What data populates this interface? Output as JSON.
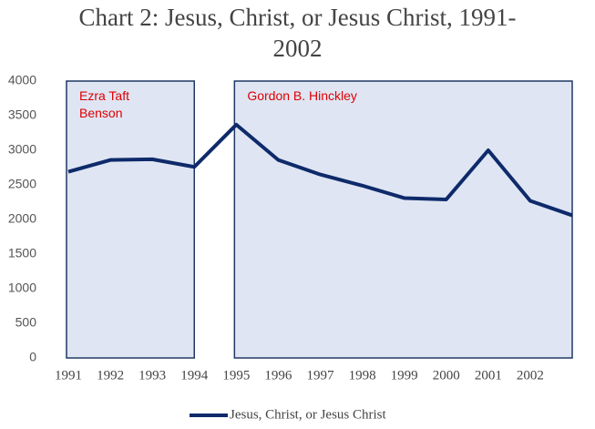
{
  "chart_data": {
    "type": "line",
    "title": "Chart 2: Jesus, Christ, or Jesus Christ, 1991-2002",
    "categories": [
      "1991",
      "1992",
      "1993",
      "1994",
      "1995",
      "1996",
      "1997",
      "1998",
      "1999",
      "2000",
      "2001",
      "2002",
      null
    ],
    "series": [
      {
        "name": "Jesus, Christ, or Jesus Christ",
        "color": "#0e2a6a",
        "values": [
          2690,
          2860,
          2870,
          2760,
          3370,
          2860,
          2650,
          2490,
          2310,
          2290,
          3000,
          2270,
          2060
        ]
      }
    ],
    "ylim": [
      0,
      4000
    ],
    "yticks": [
      0,
      500,
      1000,
      1500,
      2000,
      2500,
      3000,
      3500,
      4000
    ],
    "grid": false,
    "legend": "bottom",
    "regions": [
      {
        "label": "Ezra Taft Benson",
        "start": 0,
        "end": 3,
        "color": "#dfe5f3",
        "label_color": "#e00000"
      },
      {
        "label": "Gordon B. Hinckley",
        "start": 4,
        "end": 12,
        "color": "#dfe5f3",
        "label_color": "#e00000"
      }
    ]
  }
}
